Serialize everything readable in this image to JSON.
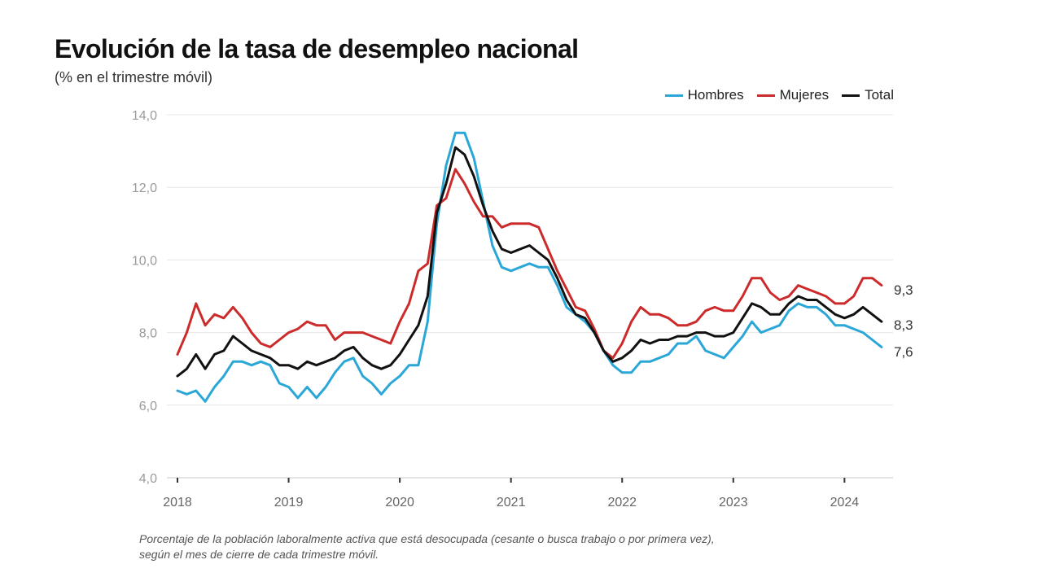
{
  "title": "Evolución de la tasa de desempleo nacional",
  "subtitle": "(% en el trimestre móvil)",
  "footnote": {
    "line1": "Porcentaje de la población laboralmente activa que está desocupada (cesante o busca trabajo o por primera vez),",
    "line2": "según el mes de cierre de cada trimestre móvil."
  },
  "legend": [
    {
      "label": "Hombres",
      "color": "#2aa7d6"
    },
    {
      "label": "Mujeres",
      "color": "#cc2b2b"
    },
    {
      "label": "Total",
      "color": "#111111"
    }
  ],
  "chart_data": {
    "type": "line",
    "title": "Evolución de la tasa de desempleo nacional",
    "subtitle": "(% en el trimestre móvil)",
    "xlabel": "",
    "ylabel": "",
    "ylim": [
      4.0,
      14.0
    ],
    "y_ticks": [
      "4,0",
      "6,0",
      "8,0",
      "10,0",
      "12,0",
      "14,0"
    ],
    "x_ticks": [
      "2018",
      "2019",
      "2020",
      "2021",
      "2022",
      "2023",
      "2024"
    ],
    "x_range": [
      "2018-01",
      "2024-05"
    ],
    "grid": true,
    "legend_position": "top-right",
    "end_labels": [
      "9,3",
      "8,3",
      "7,6"
    ],
    "series": [
      {
        "name": "Hombres",
        "color": "#2aa7d6",
        "values": [
          6.4,
          6.3,
          6.4,
          6.1,
          6.5,
          6.8,
          7.2,
          7.2,
          7.1,
          7.2,
          7.1,
          6.6,
          6.5,
          6.2,
          6.5,
          6.2,
          6.5,
          6.9,
          7.2,
          7.3,
          6.8,
          6.6,
          6.3,
          6.6,
          6.8,
          7.1,
          7.1,
          8.3,
          11.0,
          12.6,
          13.5,
          13.5,
          12.8,
          11.6,
          10.4,
          9.8,
          9.7,
          9.8,
          9.9,
          9.8,
          9.8,
          9.3,
          8.7,
          8.5,
          8.3,
          8.0,
          7.5,
          7.1,
          6.9,
          6.9,
          7.2,
          7.2,
          7.3,
          7.4,
          7.7,
          7.7,
          7.9,
          7.5,
          7.4,
          7.3,
          7.6,
          7.9,
          8.3,
          8.0,
          8.1,
          8.2,
          8.6,
          8.8,
          8.7,
          8.7,
          8.5,
          8.2,
          8.2,
          8.1,
          8.0,
          7.8,
          7.6
        ]
      },
      {
        "name": "Mujeres",
        "color": "#cc2b2b",
        "values": [
          7.4,
          8.0,
          8.8,
          8.2,
          8.5,
          8.4,
          8.7,
          8.4,
          8.0,
          7.7,
          7.6,
          7.8,
          8.0,
          8.1,
          8.3,
          8.2,
          8.2,
          7.8,
          8.0,
          8.0,
          8.0,
          7.9,
          7.8,
          7.7,
          8.3,
          8.8,
          9.7,
          9.9,
          11.5,
          11.7,
          12.5,
          12.1,
          11.6,
          11.2,
          11.2,
          10.9,
          11.0,
          11.0,
          11.0,
          10.9,
          10.3,
          9.7,
          9.2,
          8.7,
          8.6,
          8.1,
          7.5,
          7.3,
          7.7,
          8.3,
          8.7,
          8.5,
          8.5,
          8.4,
          8.2,
          8.2,
          8.3,
          8.6,
          8.7,
          8.6,
          8.6,
          9.0,
          9.5,
          9.5,
          9.1,
          8.9,
          9.0,
          9.3,
          9.2,
          9.1,
          9.0,
          8.8,
          8.8,
          9.0,
          9.5,
          9.5,
          9.3
        ]
      },
      {
        "name": "Total",
        "color": "#111111",
        "values": [
          6.8,
          7.0,
          7.4,
          7.0,
          7.4,
          7.5,
          7.9,
          7.7,
          7.5,
          7.4,
          7.3,
          7.1,
          7.1,
          7.0,
          7.2,
          7.1,
          7.2,
          7.3,
          7.5,
          7.6,
          7.3,
          7.1,
          7.0,
          7.1,
          7.4,
          7.8,
          8.2,
          9.0,
          11.3,
          12.1,
          13.1,
          12.9,
          12.3,
          11.5,
          10.8,
          10.3,
          10.2,
          10.3,
          10.4,
          10.2,
          10.0,
          9.5,
          8.9,
          8.5,
          8.4,
          8.0,
          7.5,
          7.2,
          7.3,
          7.5,
          7.8,
          7.7,
          7.8,
          7.8,
          7.9,
          7.9,
          8.0,
          8.0,
          7.9,
          7.9,
          8.0,
          8.4,
          8.8,
          8.7,
          8.5,
          8.5,
          8.8,
          9.0,
          8.9,
          8.9,
          8.7,
          8.5,
          8.4,
          8.5,
          8.7,
          8.5,
          8.3
        ]
      }
    ]
  }
}
